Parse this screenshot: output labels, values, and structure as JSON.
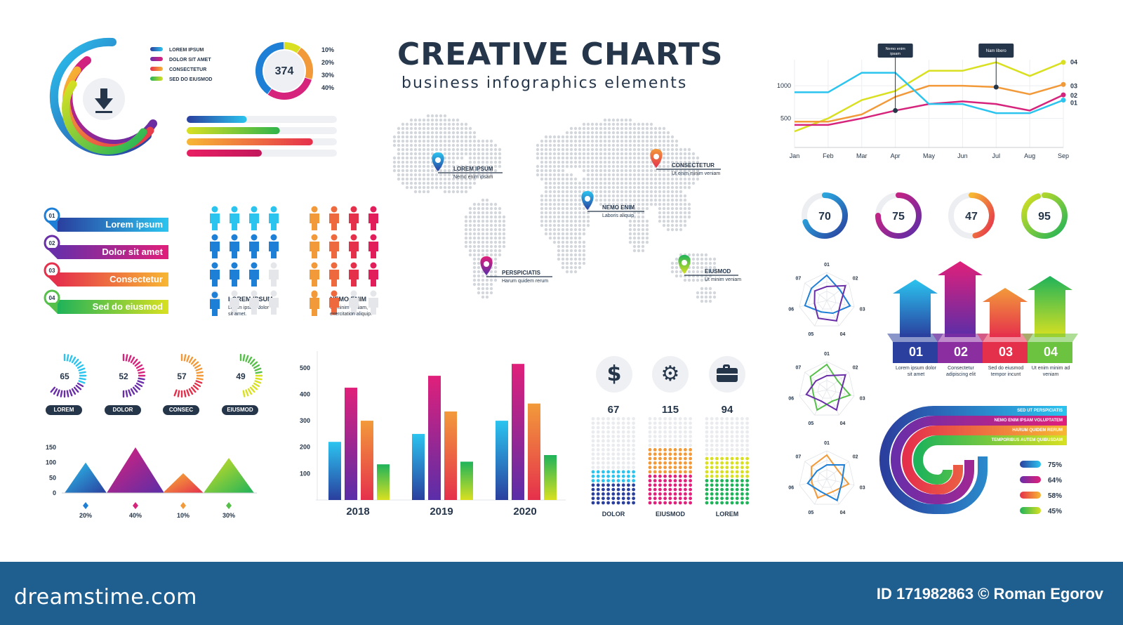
{
  "header": {
    "title": "CREATIVE CHARTS",
    "subtitle": "business infographics elements"
  },
  "footer": {
    "logo": "dreamstime.com",
    "credit": "ID 171982863 © Roman Egorov"
  },
  "colors": {
    "blue": "#1e7fd6",
    "cyan": "#2bc4ef",
    "purple": "#6a2ea8",
    "magenta": "#d6247c",
    "orange": "#f29a3a",
    "red": "#e5304c",
    "green": "#56c04a",
    "yellow": "#d9e021",
    "dark": "#26364a"
  },
  "icons": {
    "download": "download-arrow-icon",
    "dollar": "dollar-icon",
    "gear": "gear-icon",
    "briefcase": "briefcase-icon",
    "pin": "map-pin-icon",
    "person": "person-icon"
  },
  "chart_data": [
    {
      "id": "arc-legend",
      "type": "pie",
      "legend": [
        "LOREM IPSUM",
        "DOLOR SIT AMET",
        "CONSECTETUR",
        "SED DO EIUSMOD"
      ]
    },
    {
      "id": "donut-374",
      "type": "pie",
      "center": "374",
      "labels": [
        "10%",
        "20%",
        "30%",
        "40%"
      ],
      "values": [
        10,
        20,
        30,
        40
      ]
    },
    {
      "id": "hbars",
      "type": "bar",
      "orientation": "horizontal",
      "values": [
        0.4,
        0.62,
        0.84,
        0.5
      ]
    },
    {
      "id": "ribbons",
      "type": "bar",
      "items": [
        {
          "num": "01",
          "label": "Lorem ipsum"
        },
        {
          "num": "02",
          "label": "Dolor sit amet"
        },
        {
          "num": "03",
          "label": "Consectetur"
        },
        {
          "num": "04",
          "label": "Sed do eiusmod"
        }
      ]
    },
    {
      "id": "people-blue",
      "type": "table",
      "filled": 11,
      "total": 16,
      "label": "LOREM IPSUM",
      "desc": "Lorem ipsum dolor sit amet."
    },
    {
      "id": "people-orange",
      "type": "table",
      "filled": 14,
      "total": 16,
      "label": "NEMO ENIM",
      "desc": "Ut minim veniam, exercitation aliquip."
    },
    {
      "id": "map",
      "type": "scatter",
      "pins": [
        {
          "title": "LOREM IPSUM",
          "desc": "Nemo enim ipsam"
        },
        {
          "title": "CONSECTETUR",
          "desc": "Ut enim minim veniam"
        },
        {
          "title": "NEMO ENIM",
          "desc": "Laboris aliquip"
        },
        {
          "title": "PERSPICIATIS",
          "desc": "Harum quidem rerum"
        },
        {
          "title": "EIUSMOD",
          "desc": "Ut minim veniam"
        }
      ]
    },
    {
      "id": "line-chart",
      "type": "line",
      "categories": [
        "Jan",
        "Feb",
        "Mar",
        "Apr",
        "May",
        "Jun",
        "Jul",
        "Aug",
        "Sep"
      ],
      "yticks": [
        "1000",
        "500"
      ],
      "series": [
        {
          "name": "04",
          "values": [
            300,
            500,
            780,
            920,
            1230,
            1230,
            1360,
            1150,
            1360
          ]
        },
        {
          "name": "03",
          "values": [
            450,
            450,
            560,
            830,
            1000,
            1000,
            980,
            870,
            1020
          ]
        },
        {
          "name": "02",
          "values": [
            400,
            400,
            500,
            620,
            720,
            760,
            720,
            620,
            860
          ]
        },
        {
          "name": "01",
          "values": [
            900,
            900,
            1200,
            1200,
            720,
            720,
            580,
            580,
            780
          ]
        }
      ],
      "annotations": [
        "Nemo enim ipsam",
        "Nam libero"
      ]
    },
    {
      "id": "gauges",
      "type": "pie",
      "values": [
        70,
        75,
        47,
        95
      ]
    },
    {
      "id": "radars",
      "type": "scatter",
      "axes": [
        "01",
        "02",
        "03",
        "04",
        "05",
        "06",
        "07"
      ]
    },
    {
      "id": "arrows",
      "type": "bar",
      "items": [
        {
          "num": "01",
          "caption": "Lorem ipsum dolor sit amet"
        },
        {
          "num": "02",
          "caption": "Consectetur adipiscing elit"
        },
        {
          "num": "03",
          "caption": "Sed do eiusmod tempor incunt"
        },
        {
          "num": "04",
          "caption": "Ut enim minim ad veniam"
        }
      ]
    },
    {
      "id": "dot-gauges",
      "type": "pie",
      "values": [
        65,
        52,
        57,
        49
      ],
      "labels": [
        "LOREM",
        "DOLOR",
        "CONSEC",
        "EIUSMOD"
      ]
    },
    {
      "id": "triangles",
      "type": "area",
      "yticks": [
        "150",
        "100",
        "50",
        "0"
      ],
      "values": [
        100,
        150,
        65,
        115
      ],
      "labels": [
        "20%",
        "40%",
        "10%",
        "30%"
      ]
    },
    {
      "id": "grouped-bars",
      "type": "bar",
      "categories": [
        "2018",
        "2019",
        "2020"
      ],
      "yticks": [
        "500",
        "400",
        "300",
        "200",
        "100"
      ],
      "ylim": [
        0,
        550
      ],
      "series": [
        {
          "values": [
            220,
            250,
            300
          ]
        },
        {
          "values": [
            425,
            470,
            515
          ]
        },
        {
          "values": [
            300,
            335,
            365
          ]
        },
        {
          "values": [
            135,
            145,
            170
          ]
        }
      ]
    },
    {
      "id": "dot-columns",
      "type": "bar",
      "values": [
        67,
        115,
        94
      ],
      "labels": [
        "DOLOR",
        "EIUSMOD",
        "LOREM"
      ]
    },
    {
      "id": "u-shape",
      "type": "pie",
      "legend": [
        "SED UT PERSPICIATIS",
        "NEMO ENIM IPSAM VOLUPTATEM",
        "HARUM QUIDEM RERUM",
        "TEMPORIBUS AUTEM QUIBUSDAM"
      ],
      "labels": [
        "75%",
        "64%",
        "58%",
        "45%"
      ],
      "values": [
        75,
        64,
        58,
        45
      ]
    }
  ]
}
